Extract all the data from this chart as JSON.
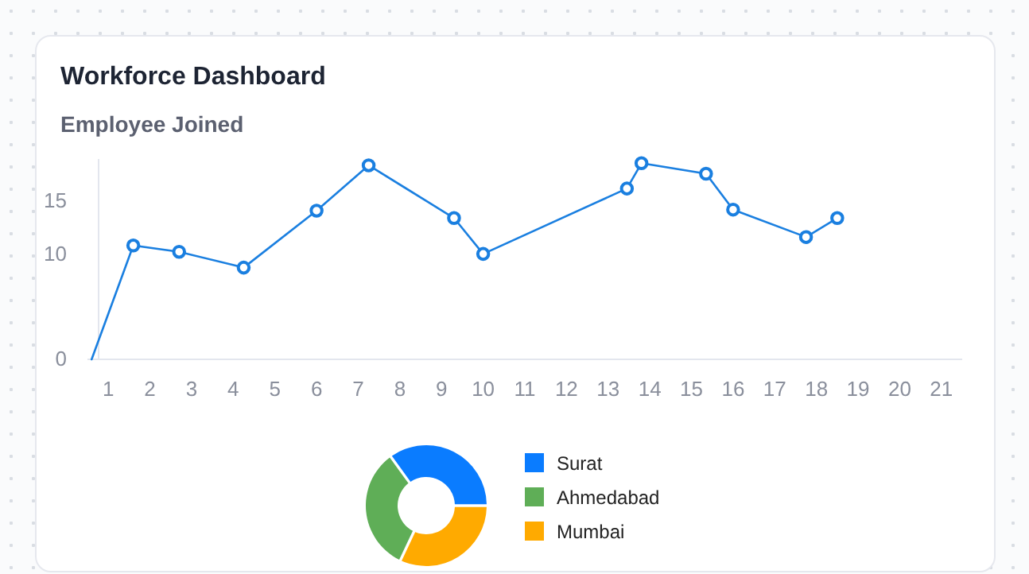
{
  "chart_data": [
    {
      "type": "line",
      "title": "Workforce Dashboard",
      "subtitle": "Employee Joined",
      "series": [
        {
          "color": "#1a7fe0",
          "x": [
            0.6,
            1.6,
            2.7,
            4.25,
            6.0,
            7.25,
            9.3,
            10,
            13.45,
            13.8,
            15.35,
            16,
            17.75,
            18.5
          ],
          "values": [
            0,
            10.8,
            10.2,
            8.7,
            14.1,
            18.4,
            13.4,
            10,
            16.2,
            18.6,
            17.6,
            14.2,
            11.6,
            13.4
          ]
        }
      ],
      "xlim": [
        0.5,
        21.5
      ],
      "xticks": [
        1,
        2,
        3,
        4,
        5,
        6,
        7,
        8,
        9,
        10,
        11,
        12,
        13,
        14,
        15,
        16,
        17,
        18,
        19,
        20,
        21
      ],
      "ylim": [
        0,
        19
      ],
      "yticks": [
        0,
        10,
        15
      ],
      "grid": false,
      "marker": "circle",
      "line_style": "solid"
    },
    {
      "type": "donut",
      "categories": [
        "Surat",
        "Ahmedabad",
        "Mumbai"
      ],
      "values": [
        35,
        33,
        32
      ],
      "colors": [
        "#0a7cff",
        "#5fae57",
        "#ffaa00"
      ],
      "legend": "right"
    }
  ]
}
